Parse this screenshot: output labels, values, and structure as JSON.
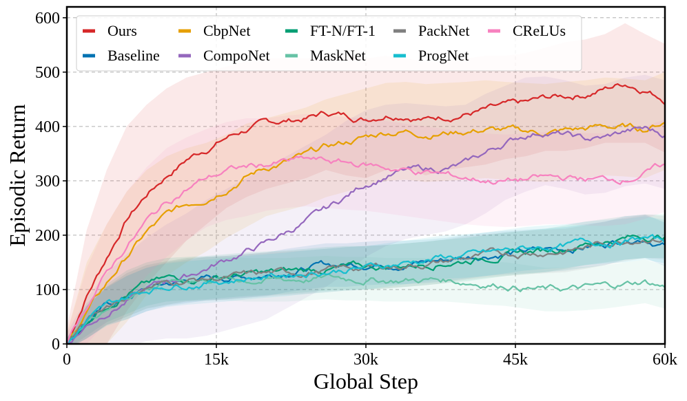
{
  "chart_data": {
    "type": "line",
    "title": "",
    "xlabel": "Global Step",
    "ylabel": "Episodic Return",
    "xlim": [
      0,
      60000
    ],
    "ylim": [
      0,
      620
    ],
    "x_ticks": [
      0,
      15000,
      30000,
      45000,
      60000
    ],
    "x_tick_labels": [
      "0",
      "15k",
      "30k",
      "45k",
      "60k"
    ],
    "y_ticks": [
      0,
      100,
      200,
      300,
      400,
      500,
      600
    ],
    "y_tick_labels": [
      "0",
      "100",
      "200",
      "300",
      "400",
      "500",
      "600"
    ],
    "grid": true,
    "legend_position": "top-left",
    "x": [
      0,
      2000,
      4000,
      6000,
      8000,
      10000,
      12000,
      14000,
      16000,
      18000,
      20000,
      22000,
      24000,
      26000,
      28000,
      30000,
      32000,
      34000,
      36000,
      38000,
      40000,
      42000,
      44000,
      46000,
      48000,
      50000,
      52000,
      54000,
      56000,
      58000,
      60000
    ],
    "series": [
      {
        "name": "Ours",
        "color": "#d62728",
        "values": [
          0,
          90,
          160,
          230,
          275,
          310,
          340,
          360,
          380,
          395,
          405,
          410,
          415,
          425,
          420,
          415,
          425,
          425,
          415,
          420,
          425,
          430,
          435,
          440,
          450,
          455,
          460,
          470,
          480,
          470,
          452
        ],
        "band": [
          30,
          120,
          160,
          170,
          165,
          160,
          150,
          140,
          130,
          125,
          120,
          115,
          110,
          105,
          110,
          110,
          105,
          100,
          105,
          100,
          100,
          100,
          95,
          95,
          95,
          100,
          100,
          100,
          110,
          100,
          100
        ]
      },
      {
        "name": "Baseline",
        "color": "#0072b2",
        "values": [
          0,
          40,
          70,
          85,
          100,
          110,
          115,
          120,
          122,
          125,
          128,
          135,
          140,
          145,
          145,
          148,
          150,
          150,
          152,
          155,
          160,
          165,
          168,
          170,
          172,
          175,
          180,
          185,
          195,
          198,
          183
        ],
        "band": [
          10,
          30,
          35,
          40,
          40,
          40,
          40,
          40,
          40,
          40,
          40,
          40,
          40,
          40,
          40,
          40,
          40,
          40,
          40,
          40,
          40,
          40,
          40,
          40,
          40,
          40,
          40,
          40,
          40,
          40,
          40
        ]
      },
      {
        "name": "CbpNet",
        "color": "#e69f00",
        "values": [
          0,
          60,
          110,
          160,
          205,
          235,
          255,
          270,
          290,
          310,
          325,
          335,
          345,
          360,
          370,
          380,
          390,
          392,
          388,
          390,
          392,
          395,
          392,
          390,
          388,
          392,
          395,
          400,
          398,
          395,
          410
        ],
        "band": [
          20,
          90,
          110,
          120,
          115,
          110,
          105,
          100,
          95,
          95,
          90,
          90,
          90,
          90,
          90,
          90,
          90,
          90,
          90,
          90,
          90,
          90,
          90,
          90,
          90,
          90,
          90,
          90,
          90,
          90,
          90
        ]
      },
      {
        "name": "CompoNet",
        "color": "#9467bd",
        "values": [
          0,
          35,
          60,
          80,
          100,
          115,
          125,
          140,
          155,
          170,
          185,
          205,
          225,
          245,
          270,
          295,
          310,
          318,
          320,
          322,
          330,
          350,
          370,
          385,
          392,
          385,
          375,
          378,
          390,
          395,
          385
        ],
        "band": [
          20,
          50,
          70,
          85,
          95,
          105,
          115,
          125,
          130,
          135,
          140,
          140,
          140,
          140,
          140,
          135,
          130,
          125,
          120,
          115,
          110,
          110,
          105,
          105,
          100,
          100,
          100,
          100,
          100,
          100,
          100
        ]
      },
      {
        "name": "FT-N/FT-1",
        "color": "#009e73",
        "values": [
          0,
          45,
          75,
          95,
          110,
          118,
          120,
          122,
          125,
          128,
          130,
          132,
          135,
          138,
          140,
          140,
          142,
          145,
          148,
          152,
          155,
          160,
          165,
          168,
          172,
          178,
          185,
          190,
          195,
          198,
          198
        ],
        "band": [
          10,
          30,
          35,
          40,
          40,
          40,
          40,
          40,
          40,
          40,
          40,
          40,
          40,
          40,
          40,
          40,
          40,
          40,
          40,
          40,
          40,
          40,
          40,
          40,
          40,
          40,
          40,
          40,
          40,
          40,
          40
        ]
      },
      {
        "name": "MaskNet",
        "color": "#66c2a5",
        "values": [
          0,
          40,
          70,
          90,
          105,
          112,
          118,
          120,
          120,
          118,
          118,
          118,
          120,
          122,
          120,
          120,
          118,
          118,
          118,
          118,
          115,
          112,
          110,
          105,
          100,
          100,
          102,
          105,
          110,
          115,
          105
        ],
        "band": [
          10,
          30,
          35,
          40,
          40,
          40,
          40,
          40,
          40,
          40,
          40,
          40,
          40,
          40,
          40,
          40,
          40,
          40,
          40,
          40,
          40,
          40,
          40,
          40,
          40,
          40,
          40,
          40,
          40,
          40,
          40
        ]
      },
      {
        "name": "PackNet",
        "color": "#7f7f7f",
        "values": [
          0,
          40,
          70,
          90,
          105,
          112,
          118,
          120,
          122,
          125,
          128,
          130,
          132,
          135,
          138,
          140,
          142,
          145,
          148,
          152,
          158,
          162,
          165,
          168,
          170,
          172,
          178,
          185,
          192,
          198,
          195
        ],
        "band": [
          10,
          30,
          35,
          40,
          40,
          40,
          40,
          40,
          40,
          40,
          40,
          40,
          40,
          40,
          40,
          40,
          40,
          40,
          40,
          40,
          40,
          40,
          40,
          40,
          40,
          40,
          40,
          40,
          40,
          40,
          40
        ]
      },
      {
        "name": "ProgNet",
        "color": "#17becf",
        "values": [
          0,
          40,
          68,
          85,
          100,
          108,
          112,
          115,
          118,
          122,
          125,
          128,
          132,
          135,
          138,
          140,
          145,
          150,
          155,
          160,
          162,
          165,
          170,
          175,
          178,
          180,
          185,
          188,
          190,
          195,
          188
        ],
        "band": [
          10,
          30,
          35,
          40,
          40,
          40,
          40,
          40,
          40,
          40,
          40,
          40,
          40,
          40,
          40,
          40,
          40,
          40,
          40,
          40,
          40,
          40,
          40,
          40,
          40,
          40,
          40,
          40,
          40,
          40,
          40
        ]
      },
      {
        "name": "CReLUs",
        "color": "#f781bf",
        "values": [
          0,
          70,
          130,
          180,
          225,
          260,
          285,
          305,
          318,
          325,
          330,
          335,
          338,
          335,
          332,
          330,
          325,
          320,
          315,
          310,
          305,
          302,
          300,
          302,
          305,
          305,
          303,
          302,
          305,
          315,
          328
        ],
        "band": [
          20,
          70,
          90,
          100,
          100,
          100,
          95,
          90,
          90,
          90,
          85,
          85,
          85,
          85,
          85,
          85,
          85,
          85,
          85,
          85,
          85,
          85,
          85,
          85,
          85,
          85,
          85,
          85,
          85,
          85,
          85
        ]
      }
    ]
  }
}
